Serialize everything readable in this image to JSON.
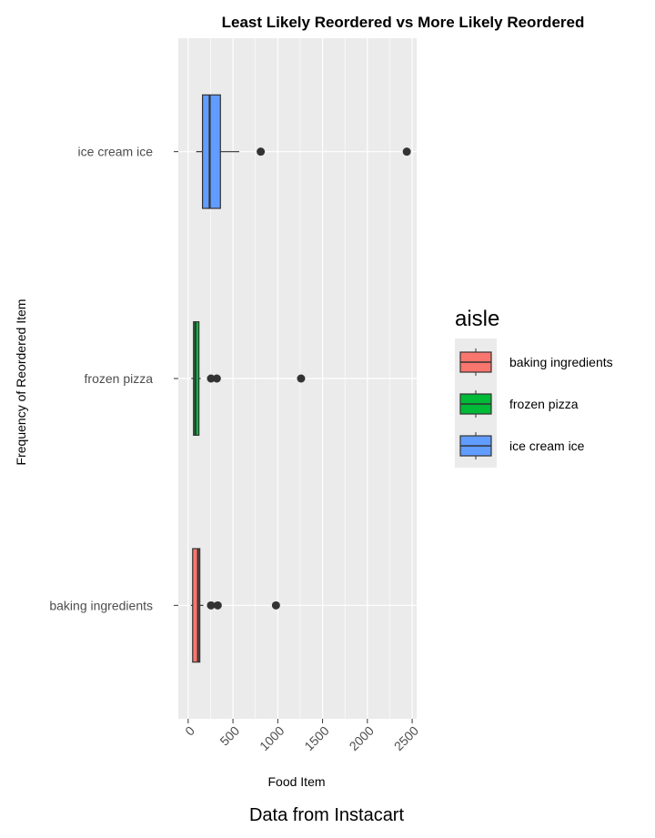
{
  "chart_data": {
    "type": "boxplot",
    "orientation": "horizontal",
    "title": "Least Likely Reordered vs More Likely Reordered",
    "xlabel": "Food Item",
    "ylabel": "Frequency of Reordered Item",
    "caption": "Data from Instacart",
    "xlim": [
      -110,
      2550
    ],
    "x_ticks": [
      0,
      500,
      1000,
      1500,
      2000,
      2500
    ],
    "x_tick_labels": [
      "0",
      "500",
      "1000",
      "1500",
      "2000",
      "2500"
    ],
    "categories": [
      "baking ingredients",
      "frozen pizza",
      "ice cream ice"
    ],
    "grid": true,
    "legend": {
      "title": "aisle",
      "placement": "right",
      "entries": [
        "baking ingredients",
        "frozen pizza",
        "ice cream ice"
      ]
    },
    "series": [
      {
        "category": "baking ingredients",
        "color": "#F8766D",
        "whisker_low": 30,
        "q1": 50,
        "median": 110,
        "q3": 130,
        "whisker_high": 170,
        "outliers": [
          255,
          330,
          980
        ]
      },
      {
        "category": "frozen pizza",
        "color": "#00BA38",
        "whisker_low": 35,
        "q1": 60,
        "median": 80,
        "q3": 120,
        "whisker_high": 140,
        "outliers": [
          255,
          320,
          1260
        ]
      },
      {
        "category": "ice cream ice",
        "color": "#619CFF",
        "whisker_low": 90,
        "q1": 160,
        "median": 240,
        "q3": 360,
        "whisker_high": 570,
        "outliers": [
          810,
          2440
        ]
      }
    ]
  }
}
